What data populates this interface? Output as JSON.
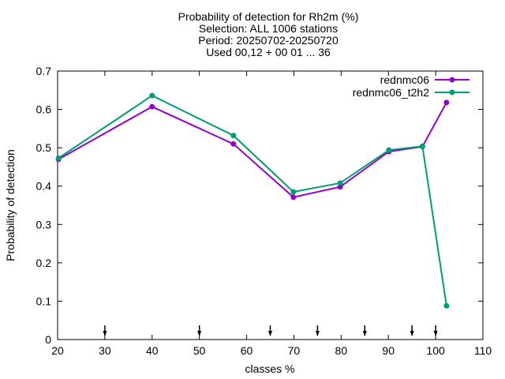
{
  "chart_data": {
    "type": "line",
    "title_lines": [
      "Probability of detection  for Rh2m (%)",
      "Selection: ALL   1006 stations",
      "Period: 20250702-20250720",
      "Used 00,12 + 00 01 ... 36"
    ],
    "xlabel": "classes %",
    "ylabel": "Probability of detection",
    "xlim": [
      20,
      110
    ],
    "ylim": [
      0,
      0.7
    ],
    "xticks": [
      20,
      30,
      40,
      50,
      60,
      70,
      80,
      90,
      100,
      110
    ],
    "yticks": [
      0,
      0.1,
      0.2,
      0.3,
      0.4,
      0.5,
      0.6,
      0.7
    ],
    "ytick_labels": [
      "0",
      "0.1",
      "0.2",
      "0.3",
      "0.4",
      "0.5",
      "0.6",
      "0.7"
    ],
    "grid": false,
    "legend_position": "top-right",
    "arrow_markers_x": [
      30,
      50,
      65,
      75,
      85,
      95,
      100
    ],
    "series": [
      {
        "name": "rednmc06",
        "color": "#9400d3",
        "points": [
          [
            20.2,
            0.47
          ],
          [
            40,
            0.607
          ],
          [
            57.2,
            0.51
          ],
          [
            69.9,
            0.371
          ],
          [
            79.8,
            0.398
          ],
          [
            90.1,
            0.49
          ],
          [
            97.2,
            0.503
          ],
          [
            102.3,
            0.618
          ]
        ]
      },
      {
        "name": "rednmc06_t2h2",
        "color": "#009e73",
        "points": [
          [
            20.2,
            0.473
          ],
          [
            40,
            0.636
          ],
          [
            57.2,
            0.532
          ],
          [
            69.9,
            0.385
          ],
          [
            79.8,
            0.408
          ],
          [
            90.1,
            0.494
          ],
          [
            97.2,
            0.504
          ],
          [
            102.3,
            0.088
          ]
        ]
      }
    ]
  }
}
